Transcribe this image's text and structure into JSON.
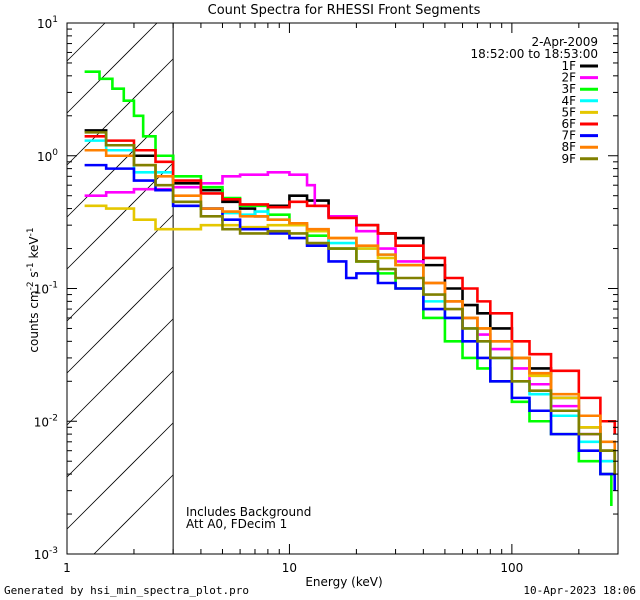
{
  "chart_data": {
    "type": "line",
    "title": "Count Spectra for RHESSI Front Segments",
    "xlabel": "Energy (keV)",
    "ylabel_parts": [
      "counts cm",
      "-2",
      " s",
      "-1",
      " keV",
      "-1"
    ],
    "xscale": "log",
    "yscale": "log",
    "xlim": [
      1,
      300
    ],
    "ylim": [
      0.001,
      10
    ],
    "x_tick_labels": [
      {
        "value": 1,
        "label": "1"
      },
      {
        "value": 10,
        "label": "10"
      },
      {
        "value": 100,
        "label": "100"
      }
    ],
    "y_tick_labels": [
      {
        "value": 10,
        "mant": "10",
        "exp": "1"
      },
      {
        "value": 1,
        "mant": "10",
        "exp": "0"
      },
      {
        "value": 0.1,
        "mant": "10",
        "exp": "-1"
      },
      {
        "value": 0.01,
        "mant": "10",
        "exp": "-2"
      },
      {
        "value": 0.001,
        "mant": "10",
        "exp": "-3"
      }
    ],
    "excluded_region_keV": [
      1,
      3
    ],
    "date": "2-Apr-2009",
    "time_range": "18:52:00 to 18:53:00",
    "annotations": [
      "Includes Background",
      "Att A0, FDecim 1"
    ],
    "series": [
      {
        "name": "1F",
        "color": "#000000",
        "points": [
          [
            1.2,
            1.55
          ],
          [
            1.5,
            1.2
          ],
          [
            2,
            1.0
          ],
          [
            3,
            0.62
          ],
          [
            4,
            0.55
          ],
          [
            5,
            0.45
          ],
          [
            6,
            0.4
          ],
          [
            7,
            0.35
          ],
          [
            8,
            0.42
          ],
          [
            10,
            0.5
          ],
          [
            12,
            0.46
          ],
          [
            15,
            0.35
          ],
          [
            20,
            0.3
          ],
          [
            25,
            0.26
          ],
          [
            30,
            0.24
          ],
          [
            40,
            0.15
          ],
          [
            50,
            0.1
          ],
          [
            60,
            0.075
          ],
          [
            70,
            0.065
          ],
          [
            80,
            0.05
          ],
          [
            100,
            0.03
          ],
          [
            120,
            0.025
          ],
          [
            150,
            0.015
          ],
          [
            200,
            0.009
          ],
          [
            250,
            0.006
          ],
          [
            290,
            0.005
          ]
        ]
      },
      {
        "name": "2F",
        "color": "#ff00ff",
        "points": [
          [
            1.2,
            0.5
          ],
          [
            1.5,
            0.53
          ],
          [
            2,
            0.56
          ],
          [
            3,
            0.58
          ],
          [
            4,
            0.62
          ],
          [
            5,
            0.7
          ],
          [
            6,
            0.72
          ],
          [
            8,
            0.75
          ],
          [
            10,
            0.72
          ],
          [
            12,
            0.6
          ],
          [
            13,
            0.42
          ],
          [
            15,
            0.35
          ],
          [
            20,
            0.27
          ],
          [
            25,
            0.2
          ],
          [
            30,
            0.16
          ],
          [
            40,
            0.11
          ],
          [
            50,
            0.08
          ],
          [
            60,
            0.06
          ],
          [
            70,
            0.045
          ],
          [
            80,
            0.035
          ],
          [
            100,
            0.025
          ],
          [
            120,
            0.019
          ],
          [
            150,
            0.013
          ],
          [
            200,
            0.008
          ],
          [
            250,
            0.005
          ],
          [
            290,
            0.003
          ]
        ]
      },
      {
        "name": "3F",
        "color": "#00ff00",
        "points": [
          [
            1.2,
            4.3
          ],
          [
            1.4,
            3.8
          ],
          [
            1.6,
            3.2
          ],
          [
            1.8,
            2.6
          ],
          [
            2,
            2.0
          ],
          [
            2.2,
            1.4
          ],
          [
            2.5,
            1.0
          ],
          [
            3,
            0.7
          ],
          [
            4,
            0.58
          ],
          [
            5,
            0.48
          ],
          [
            6,
            0.42
          ],
          [
            8,
            0.36
          ],
          [
            10,
            0.3
          ],
          [
            12,
            0.25
          ],
          [
            15,
            0.2
          ],
          [
            20,
            0.16
          ],
          [
            25,
            0.13
          ],
          [
            30,
            0.1
          ],
          [
            40,
            0.06
          ],
          [
            50,
            0.04
          ],
          [
            60,
            0.03
          ],
          [
            70,
            0.025
          ],
          [
            80,
            0.02
          ],
          [
            100,
            0.014
          ],
          [
            120,
            0.01
          ],
          [
            150,
            0.008
          ],
          [
            200,
            0.005
          ],
          [
            250,
            0.004
          ],
          [
            280,
            0.0023
          ]
        ]
      },
      {
        "name": "4F",
        "color": "#00ffff",
        "points": [
          [
            1.2,
            1.3
          ],
          [
            1.5,
            1.1
          ],
          [
            2,
            0.75
          ],
          [
            3,
            0.42
          ],
          [
            4,
            0.4
          ],
          [
            5,
            0.37
          ],
          [
            6,
            0.36
          ],
          [
            7,
            0.38
          ],
          [
            8,
            0.33
          ],
          [
            10,
            0.3
          ],
          [
            12,
            0.27
          ],
          [
            15,
            0.22
          ],
          [
            20,
            0.2
          ],
          [
            25,
            0.18
          ],
          [
            30,
            0.15
          ],
          [
            40,
            0.08
          ],
          [
            50,
            0.06
          ],
          [
            60,
            0.05
          ],
          [
            70,
            0.04
          ],
          [
            80,
            0.03
          ],
          [
            100,
            0.02
          ],
          [
            120,
            0.016
          ],
          [
            150,
            0.011
          ],
          [
            200,
            0.007
          ],
          [
            250,
            0.005
          ],
          [
            290,
            0.004
          ]
        ]
      },
      {
        "name": "5F",
        "color": "#e5c700",
        "points": [
          [
            1.2,
            0.42
          ],
          [
            1.5,
            0.4
          ],
          [
            2,
            0.33
          ],
          [
            2.5,
            0.28
          ],
          [
            3,
            0.28
          ],
          [
            4,
            0.3
          ],
          [
            5,
            0.3
          ],
          [
            6,
            0.29
          ],
          [
            8,
            0.3
          ],
          [
            10,
            0.3
          ],
          [
            12,
            0.27
          ],
          [
            15,
            0.24
          ],
          [
            20,
            0.2
          ],
          [
            25,
            0.17
          ],
          [
            30,
            0.15
          ],
          [
            40,
            0.11
          ],
          [
            50,
            0.08
          ],
          [
            60,
            0.06
          ],
          [
            70,
            0.05
          ],
          [
            80,
            0.04
          ],
          [
            100,
            0.03
          ],
          [
            120,
            0.022
          ],
          [
            150,
            0.015
          ],
          [
            200,
            0.009
          ],
          [
            250,
            0.006
          ],
          [
            290,
            0.005
          ]
        ]
      },
      {
        "name": "6F",
        "color": "#ff0000",
        "points": [
          [
            1.2,
            1.4
          ],
          [
            1.5,
            1.3
          ],
          [
            2,
            1.1
          ],
          [
            2.5,
            0.9
          ],
          [
            3,
            0.65
          ],
          [
            4,
            0.52
          ],
          [
            5,
            0.47
          ],
          [
            6,
            0.43
          ],
          [
            8,
            0.41
          ],
          [
            10,
            0.45
          ],
          [
            12,
            0.42
          ],
          [
            15,
            0.34
          ],
          [
            20,
            0.3
          ],
          [
            25,
            0.26
          ],
          [
            30,
            0.21
          ],
          [
            40,
            0.17
          ],
          [
            50,
            0.12
          ],
          [
            60,
            0.1
          ],
          [
            70,
            0.08
          ],
          [
            80,
            0.065
          ],
          [
            100,
            0.04
          ],
          [
            120,
            0.032
          ],
          [
            150,
            0.024
          ],
          [
            200,
            0.015
          ],
          [
            250,
            0.01
          ],
          [
            290,
            0.008
          ]
        ]
      },
      {
        "name": "7F",
        "color": "#0000ff",
        "points": [
          [
            1.2,
            0.85
          ],
          [
            1.5,
            0.8
          ],
          [
            2,
            0.65
          ],
          [
            2.5,
            0.55
          ],
          [
            3,
            0.42
          ],
          [
            4,
            0.4
          ],
          [
            5,
            0.33
          ],
          [
            6,
            0.28
          ],
          [
            8,
            0.26
          ],
          [
            10,
            0.24
          ],
          [
            12,
            0.21
          ],
          [
            15,
            0.16
          ],
          [
            18,
            0.12
          ],
          [
            20,
            0.13
          ],
          [
            25,
            0.11
          ],
          [
            30,
            0.1
          ],
          [
            40,
            0.07
          ],
          [
            50,
            0.06
          ],
          [
            60,
            0.04
          ],
          [
            70,
            0.03
          ],
          [
            80,
            0.02
          ],
          [
            100,
            0.015
          ],
          [
            120,
            0.012
          ],
          [
            150,
            0.008
          ],
          [
            200,
            0.006
          ],
          [
            250,
            0.004
          ],
          [
            290,
            0.003
          ]
        ]
      },
      {
        "name": "8F",
        "color": "#ff8000",
        "points": [
          [
            1.2,
            1.1
          ],
          [
            1.5,
            1.0
          ],
          [
            2,
            0.85
          ],
          [
            2.5,
            0.7
          ],
          [
            3,
            0.5
          ],
          [
            4,
            0.4
          ],
          [
            5,
            0.38
          ],
          [
            6,
            0.35
          ],
          [
            8,
            0.33
          ],
          [
            10,
            0.31
          ],
          [
            12,
            0.28
          ],
          [
            15,
            0.24
          ],
          [
            20,
            0.21
          ],
          [
            25,
            0.18
          ],
          [
            30,
            0.15
          ],
          [
            40,
            0.11
          ],
          [
            50,
            0.08
          ],
          [
            60,
            0.06
          ],
          [
            70,
            0.05
          ],
          [
            80,
            0.04
          ],
          [
            100,
            0.03
          ],
          [
            120,
            0.023
          ],
          [
            150,
            0.016
          ],
          [
            200,
            0.011
          ],
          [
            250,
            0.007
          ],
          [
            290,
            0.005
          ]
        ]
      },
      {
        "name": "9F",
        "color": "#808000",
        "points": [
          [
            1.2,
            1.5
          ],
          [
            1.5,
            1.2
          ],
          [
            2,
            0.85
          ],
          [
            2.5,
            0.6
          ],
          [
            3,
            0.45
          ],
          [
            4,
            0.35
          ],
          [
            5,
            0.28
          ],
          [
            6,
            0.26
          ],
          [
            8,
            0.27
          ],
          [
            10,
            0.26
          ],
          [
            12,
            0.22
          ],
          [
            15,
            0.2
          ],
          [
            20,
            0.16
          ],
          [
            25,
            0.14
          ],
          [
            30,
            0.12
          ],
          [
            40,
            0.09
          ],
          [
            50,
            0.07
          ],
          [
            60,
            0.05
          ],
          [
            70,
            0.04
          ],
          [
            80,
            0.03
          ],
          [
            100,
            0.02
          ],
          [
            120,
            0.017
          ],
          [
            150,
            0.012
          ],
          [
            200,
            0.008
          ],
          [
            250,
            0.006
          ],
          [
            290,
            0.004
          ]
        ]
      }
    ]
  },
  "footer": {
    "generated_by": "Generated by hsi_min_spectra_plot.pro",
    "timestamp": "10-Apr-2023 18:06"
  }
}
